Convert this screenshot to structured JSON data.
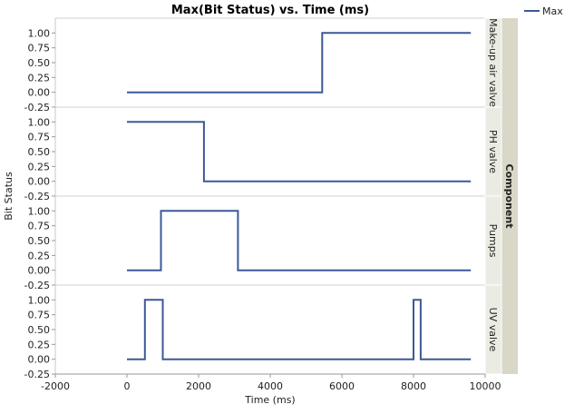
{
  "chart_data": {
    "type": "line",
    "title": "Max(Bit Status) vs. Time (ms)",
    "xlabel": "Time (ms)",
    "ylabel": "Bit Status",
    "xlim": [
      -2000,
      10000
    ],
    "ylim": [
      -0.25,
      1.25
    ],
    "xticks": [
      "-2000",
      "0",
      "2000",
      "4000",
      "6000",
      "8000",
      "10000"
    ],
    "yticks": [
      "-0.25",
      "0.00",
      "0.25",
      "0.50",
      "0.75",
      "1.00"
    ],
    "group_label": "Component",
    "legend": {
      "entries": [
        "Max"
      ],
      "placement": "top-right"
    },
    "line_color": "#3b5998",
    "step": true,
    "panels": [
      {
        "name": "Make-up air valve",
        "x": [
          0,
          5450,
          5450,
          9600
        ],
        "y": [
          0,
          0,
          1,
          1
        ]
      },
      {
        "name": "PH valve",
        "x": [
          0,
          2150,
          2150,
          9600
        ],
        "y": [
          1,
          1,
          0,
          0
        ]
      },
      {
        "name": "Pumps",
        "x": [
          0,
          950,
          950,
          3100,
          3100,
          9600
        ],
        "y": [
          0,
          0,
          1,
          1,
          0,
          0
        ]
      },
      {
        "name": "UV valve",
        "x": [
          0,
          500,
          500,
          1000,
          1000,
          8000,
          8000,
          8200,
          8200,
          9600
        ],
        "y": [
          0,
          0,
          1,
          1,
          0,
          0,
          1,
          1,
          0,
          0
        ]
      }
    ]
  }
}
